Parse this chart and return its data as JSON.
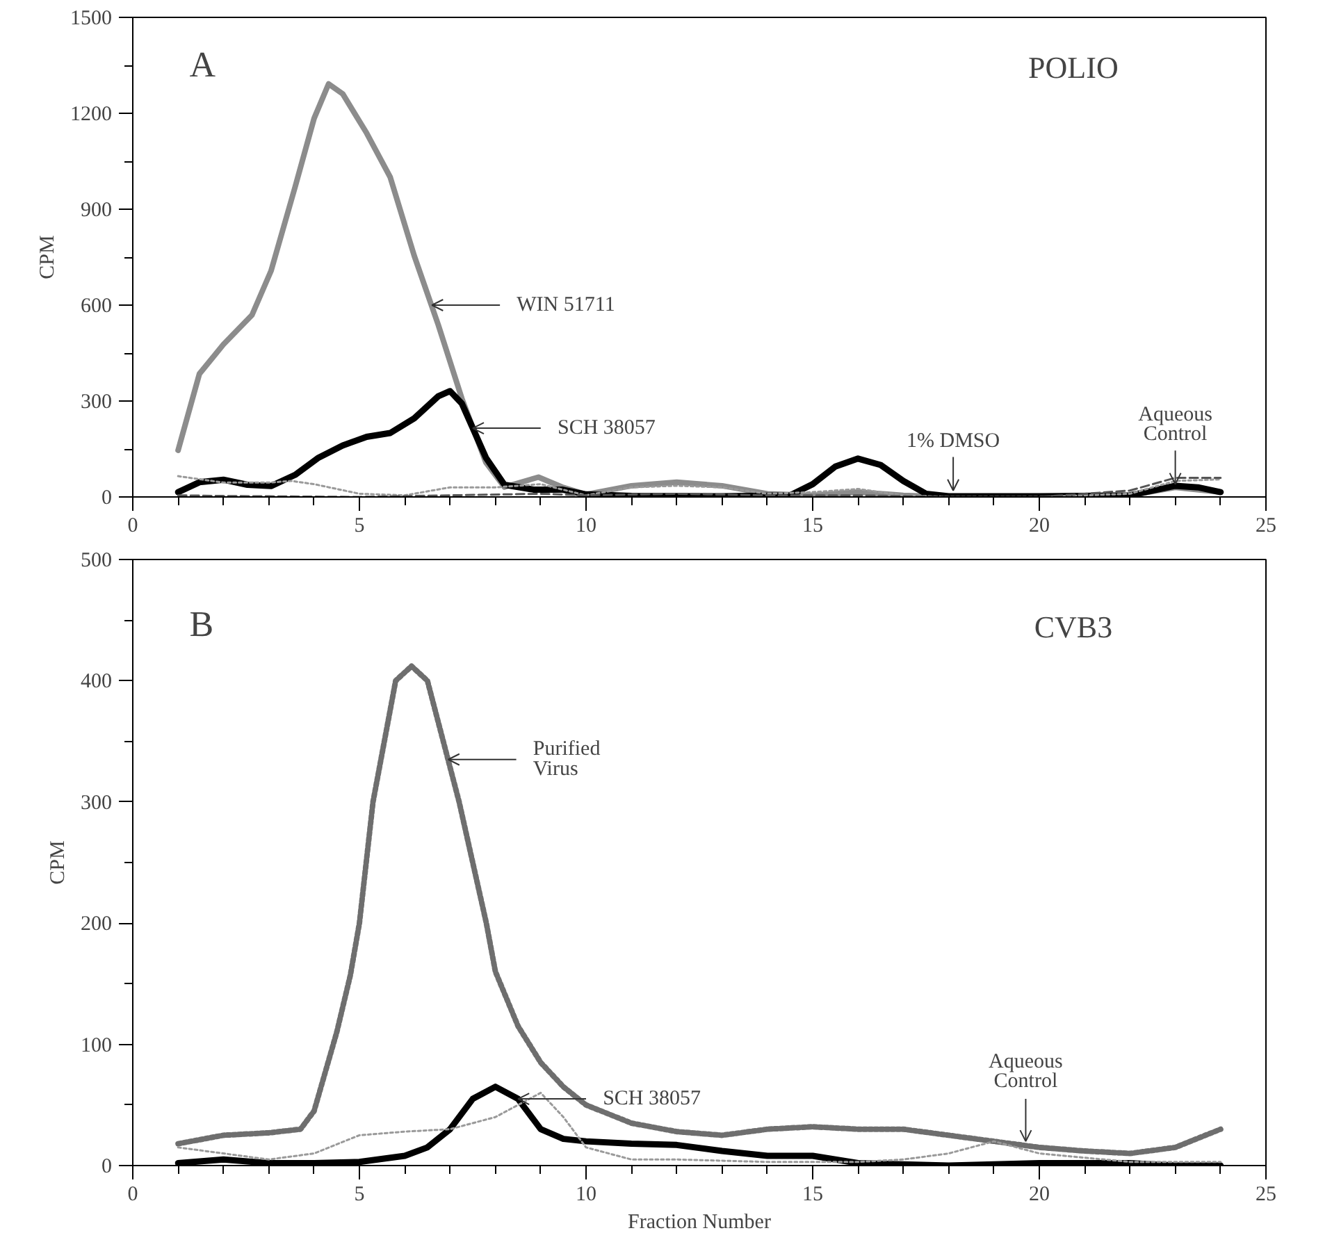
{
  "chart_data": [
    {
      "type": "line",
      "title": "A",
      "subtitle": "POLIO",
      "ylabel": "CPM",
      "xlim": [
        0,
        25
      ],
      "xticks": [
        0,
        {
          "value": 1,
          "label": null
        },
        {
          "value": 2,
          "label": null
        },
        {
          "value": 3,
          "label": null
        },
        {
          "value": 4,
          "label": null
        },
        5,
        {
          "value": 6,
          "label": null
        },
        {
          "value": 7,
          "label": null
        },
        {
          "value": 8,
          "label": null
        },
        {
          "value": 9,
          "label": null
        },
        10,
        {
          "value": 11,
          "label": null
        },
        {
          "value": 12,
          "label": null
        },
        {
          "value": 13,
          "label": null
        },
        {
          "value": 14,
          "label": null
        },
        15,
        {
          "value": 16,
          "label": null
        },
        {
          "value": 17,
          "label": null
        },
        {
          "value": 18,
          "label": null
        },
        {
          "value": 19,
          "label": null
        },
        20,
        {
          "value": 21,
          "label": null
        },
        {
          "value": 22,
          "label": null
        },
        {
          "value": 23,
          "label": null
        },
        {
          "value": 24,
          "label": null
        },
        25
      ],
      "ylim": [
        0,
        1500
      ],
      "yticks": [
        0,
        {
          "value": 150,
          "label": null
        },
        300,
        {
          "value": 450,
          "label": null
        },
        600,
        {
          "value": 750,
          "label": null
        },
        900,
        {
          "value": 1050,
          "label": null
        },
        1200,
        {
          "value": 1350,
          "label": null
        },
        1500
      ],
      "grid": false,
      "series": [
        {
          "color": "#8c8c8c",
          "line_style": "solid",
          "x": [
            1,
            1.47,
            2,
            2.63,
            3.05,
            3.58,
            4,
            4.32,
            4.63,
            5.16,
            5.68,
            6.21,
            6.74,
            7.26,
            7.79,
            8.2,
            8.95,
            9.47,
            10,
            11,
            12,
            13,
            14,
            15,
            16,
            17,
            18,
            20,
            22,
            23,
            24
          ],
          "values": [
            146,
            385,
            477,
            569,
            707,
            969,
            1184,
            1292,
            1261,
            1138,
            1000,
            754,
            538,
            308,
            108,
            31,
            62,
            31,
            8,
            35,
            46,
            35,
            10,
            5,
            15,
            5,
            0,
            0,
            5,
            30,
            15
          ]
        },
        {
          "color": "#000000",
          "line_style": "solid",
          "x": [
            1,
            1.47,
            2,
            2.53,
            3.05,
            3.58,
            4.1,
            4.63,
            5.16,
            5.68,
            6.21,
            6.74,
            7,
            7.26,
            7.79,
            8.2,
            8.84,
            9.47,
            10,
            11,
            13,
            14.5,
            15,
            15.5,
            16,
            16.5,
            17,
            17.5,
            18,
            20,
            22,
            22.5,
            23,
            23.5,
            24
          ],
          "values": [
            15,
            46,
            54,
            38,
            34,
            69,
            123,
            161,
            188,
            200,
            246,
            315,
            331,
            292,
            123,
            38,
            23,
            23,
            8,
            3,
            2,
            5,
            40,
            95,
            120,
            100,
            50,
            10,
            2,
            2,
            5,
            20,
            35,
            30,
            15
          ]
        },
        {
          "color": "#9a9a9a",
          "line_style": "dotted",
          "x": [
            1,
            2,
            3,
            3.5,
            4,
            5,
            6,
            7,
            8,
            9,
            10,
            11,
            12,
            13,
            14,
            15,
            16,
            17,
            18,
            20,
            22,
            23,
            24
          ],
          "values": [
            65,
            45,
            45,
            50,
            40,
            10,
            5,
            30,
            30,
            40,
            5,
            30,
            35,
            30,
            10,
            15,
            25,
            5,
            0,
            0,
            10,
            50,
            55
          ]
        },
        {
          "color": "#555555",
          "line_style": "dashed",
          "x": [
            1,
            2,
            3,
            5,
            7,
            9,
            10,
            12,
            14,
            16,
            18,
            20,
            22,
            23,
            24
          ],
          "values": [
            5,
            3,
            2,
            0,
            5,
            10,
            5,
            10,
            5,
            5,
            0,
            0,
            20,
            60,
            60
          ]
        }
      ],
      "annotations": [
        {
          "text": "WIN 51711",
          "x": 6.6,
          "y": 600
        },
        {
          "text": "SCH 38057",
          "x": 7.5,
          "y": 215
        },
        {
          "text": "1% DMSO",
          "x": 18.1,
          "y": 20
        },
        {
          "text": "Aqueous\nControl",
          "x": 23,
          "y": 40
        }
      ]
    },
    {
      "type": "line",
      "title": "B",
      "subtitle": "CVB3",
      "ylabel": "CPM",
      "xlabel": "Fraction Number",
      "xlim": [
        0,
        25
      ],
      "xticks": [
        0,
        {
          "value": 1,
          "label": null
        },
        {
          "value": 2,
          "label": null
        },
        {
          "value": 3,
          "label": null
        },
        {
          "value": 4,
          "label": null
        },
        5,
        {
          "value": 6,
          "label": null
        },
        {
          "value": 7,
          "label": null
        },
        {
          "value": 8,
          "label": null
        },
        {
          "value": 9,
          "label": null
        },
        10,
        {
          "value": 11,
          "label": null
        },
        {
          "value": 12,
          "label": null
        },
        {
          "value": 13,
          "label": null
        },
        {
          "value": 14,
          "label": null
        },
        15,
        {
          "value": 16,
          "label": null
        },
        {
          "value": 17,
          "label": null
        },
        {
          "value": 18,
          "label": null
        },
        {
          "value": 19,
          "label": null
        },
        20,
        {
          "value": 21,
          "label": null
        },
        {
          "value": 22,
          "label": null
        },
        {
          "value": 23,
          "label": null
        },
        {
          "value": 24,
          "label": null
        },
        25
      ],
      "ylim": [
        0,
        500
      ],
      "yticks": [
        0,
        {
          "value": 50,
          "label": null
        },
        100,
        {
          "value": 150,
          "label": null
        },
        200,
        {
          "value": 250,
          "label": null
        },
        300,
        {
          "value": 350,
          "label": null
        },
        400,
        {
          "value": 450,
          "label": null
        },
        500
      ],
      "grid": false,
      "series": [
        {
          "color": "#6e6e6e",
          "line_style": "dotted",
          "x": [
            1,
            2,
            3,
            3.7,
            4,
            4.5,
            4.8,
            5,
            5.3,
            5.8,
            6.15,
            6.5,
            7.2,
            7.8,
            8,
            8.5,
            9,
            9.5,
            10,
            11,
            12,
            13,
            14,
            15,
            16,
            17,
            18,
            19,
            20,
            21,
            22,
            23,
            24
          ],
          "values": [
            18,
            25,
            27,
            30,
            45,
            110,
            157,
            200,
            300,
            400,
            412,
            400,
            300,
            200,
            160,
            115,
            85,
            65,
            50,
            35,
            28,
            25,
            30,
            32,
            30,
            30,
            25,
            20,
            15,
            12,
            10,
            15,
            30
          ]
        },
        {
          "color": "#000000",
          "line_style": "solid",
          "x": [
            1,
            2,
            3,
            4,
            5,
            6,
            6.5,
            7,
            7.5,
            8,
            8.5,
            9,
            9.5,
            10,
            11,
            12,
            13,
            14,
            15,
            16,
            18,
            20,
            22,
            23,
            24
          ],
          "values": [
            2,
            5,
            2,
            2,
            3,
            8,
            15,
            30,
            55,
            65,
            55,
            30,
            22,
            20,
            18,
            17,
            12,
            8,
            8,
            2,
            0,
            2,
            2,
            0,
            0
          ]
        },
        {
          "color": "#9a9a9a",
          "line_style": "dotted",
          "x": [
            1,
            2,
            3,
            4,
            5,
            6,
            7,
            8,
            8.5,
            9,
            9.5,
            10,
            11,
            12,
            14,
            16,
            17,
            18,
            19,
            20,
            22,
            24
          ],
          "values": [
            15,
            10,
            5,
            10,
            25,
            28,
            30,
            40,
            50,
            60,
            40,
            15,
            5,
            5,
            3,
            3,
            5,
            10,
            20,
            10,
            3,
            3
          ]
        }
      ],
      "annotations": [
        {
          "text": "Purified\nVirus",
          "x": 6.96,
          "y": 335
        },
        {
          "text": "SCH 38057",
          "x": 8.5,
          "y": 55
        },
        {
          "text": "Aqueous\nControl",
          "x": 19.7,
          "y": 20
        }
      ]
    }
  ]
}
